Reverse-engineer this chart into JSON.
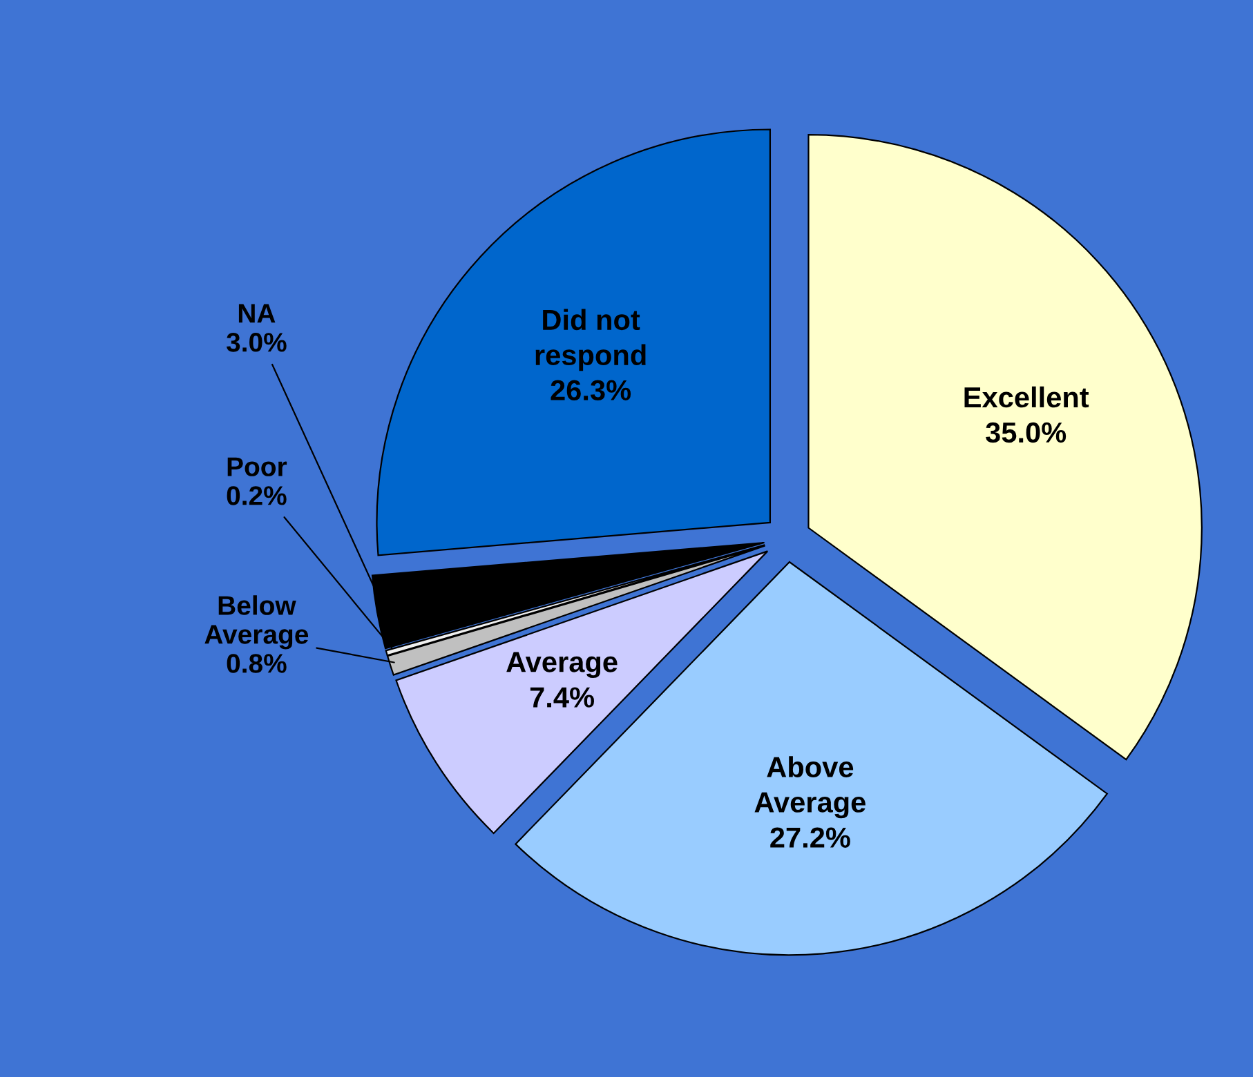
{
  "chart_data": {
    "type": "pie",
    "categories": [
      "Excellent",
      "Above\nAverage",
      "Average",
      "Below\nAverage",
      "Poor",
      "NA",
      "Did not\nrespond"
    ],
    "values": [
      35.0,
      27.2,
      7.4,
      0.8,
      0.2,
      3.0,
      26.3
    ],
    "value_labels": [
      "35.0%",
      "27.2%",
      "7.4%",
      "0.8%",
      "0.2%",
      "3.0%",
      "26.3%"
    ],
    "colors": [
      "#ffffcc",
      "#99ccff",
      "#ccccff",
      "#c0c0c0",
      "#f0f0f0",
      "#000000",
      "#0066cc"
    ],
    "legend": false
  }
}
